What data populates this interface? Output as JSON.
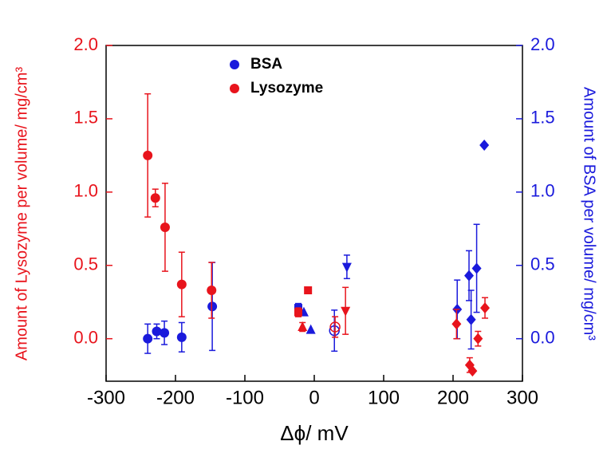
{
  "chart_data": {
    "type": "scatter",
    "xlabel": "Δϕ/ mV",
    "ylabel": "Amount of Lysozyme per volume/ mg/cm³",
    "y2label": "Amount of BSA per volume/ mg/cm³",
    "xlim": [
      -300,
      300
    ],
    "xticks": [
      -300,
      -200,
      -100,
      0,
      100,
      200,
      300
    ],
    "ylim": [
      -0.29,
      2.0
    ],
    "yticks": [
      {
        "value": 0,
        "label": "0.0"
      },
      {
        "value": 0.5,
        "label": "0.5"
      },
      {
        "value": 1,
        "label": "1.0"
      },
      {
        "value": 1.5,
        "label": "1.5"
      },
      {
        "value": 2,
        "label": "2.0"
      }
    ],
    "y2lim": [
      -0.29,
      2.0
    ],
    "y2ticks": [
      {
        "value": 0,
        "label": "0.0"
      },
      {
        "value": 0.5,
        "label": "0.5"
      },
      {
        "value": 1,
        "label": "1.0"
      },
      {
        "value": 1.5,
        "label": "1.5"
      },
      {
        "value": 2,
        "label": "2.0"
      }
    ],
    "legend": "upper-center",
    "ycolor": "#e8141c",
    "y2color": "#1a1adc",
    "series": [
      {
        "name": "BSA",
        "color": "#1a1adc",
        "axis": "y2",
        "x": [
          -240,
          -227,
          -216,
          -191,
          -147,
          -23,
          -15,
          -5,
          29,
          47,
          206,
          223,
          226,
          234,
          245
        ],
        "values": [
          0.0,
          0.05,
          0.04,
          0.01,
          0.22,
          0.21,
          0.18,
          0.06,
          0.055,
          0.49,
          0.2,
          0.43,
          0.13,
          0.48,
          1.32
        ],
        "errors": [
          0.1,
          0.05,
          0.08,
          0.1,
          0.3,
          0.03,
          null,
          null,
          0.14,
          0.08,
          0.2,
          0.17,
          0.2,
          0.3,
          null
        ],
        "markers": [
          "circle",
          "circle",
          "circle",
          "circle",
          "circle",
          "square",
          "triangle-up",
          "triangle-up",
          "circle-open",
          "triangle-down",
          "diamond",
          "diamond",
          "diamond",
          "diamond",
          "diamond"
        ]
      },
      {
        "name": "Lysozyme",
        "color": "#e8141c",
        "x": [
          -240,
          -229,
          -215,
          -191,
          -148,
          -23,
          -9,
          -17,
          30,
          45,
          205,
          224,
          228,
          236,
          246
        ],
        "values": [
          1.25,
          0.96,
          0.76,
          0.37,
          0.33,
          0.18,
          0.33,
          0.08,
          0.08,
          0.19,
          0.1,
          -0.18,
          -0.22,
          0.0,
          0.21
        ],
        "errors": [
          0.42,
          0.06,
          0.3,
          0.22,
          0.19,
          0.03,
          null,
          0.03,
          0.07,
          0.16,
          0.1,
          0.05,
          null,
          0.05,
          0.07
        ],
        "markers": [
          "circle",
          "circle",
          "circle",
          "circle",
          "circle",
          "square",
          "square",
          "triangle-up",
          "circle-open",
          "triangle-down",
          "diamond",
          "diamond",
          "diamond",
          "diamond",
          "diamond"
        ]
      }
    ]
  }
}
